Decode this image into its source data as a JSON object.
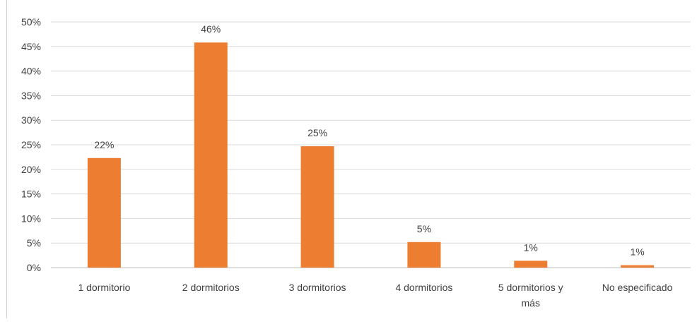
{
  "chart_data": {
    "type": "bar",
    "title": "",
    "xlabel": "",
    "ylabel": "",
    "ylim": [
      0,
      50
    ],
    "y_tick_step": 5,
    "y_tick_labels": [
      "0%",
      "5%",
      "10%",
      "15%",
      "20%",
      "25%",
      "30%",
      "35%",
      "40%",
      "45%",
      "50%"
    ],
    "grid": true,
    "legend": "none",
    "bar_color": "#ED7D31",
    "categories": [
      "1 dormitorio",
      "2 dormitorios",
      "3 dormitorios",
      "4 dormitorios",
      "5 dormitorios y más",
      "No especificado"
    ],
    "category_lines": [
      [
        "1 dormitorio"
      ],
      [
        "2 dormitorios"
      ],
      [
        "3 dormitorios"
      ],
      [
        "4 dormitorios"
      ],
      [
        "5 dormitorios y",
        "más"
      ],
      [
        "No especificado"
      ]
    ],
    "values": [
      22.3,
      45.8,
      24.7,
      5.2,
      1.4,
      0.5
    ],
    "data_labels": [
      "22%",
      "46%",
      "25%",
      "5%",
      "1%",
      "1%"
    ]
  }
}
